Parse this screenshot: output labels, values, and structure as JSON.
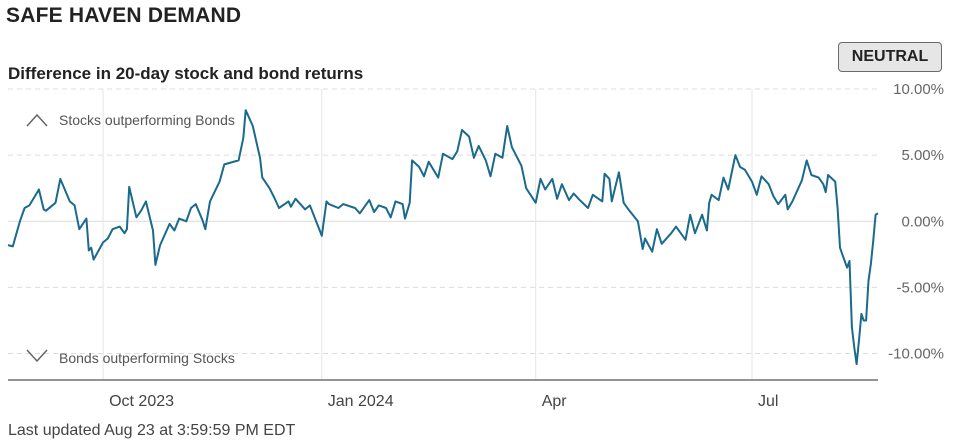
{
  "header": {
    "title": "SAFE HAVEN DEMAND",
    "subtitle": "Difference in 20-day stock and bond returns",
    "rating": "NEUTRAL"
  },
  "footer": {
    "updated": "Last updated Aug 23 at 3:59:59 PM EDT"
  },
  "colors": {
    "line": "#1a6a8c",
    "grid": "#dcdcdc",
    "axis": "#555555",
    "badge_bg": "#e6e6e6"
  },
  "icons": {
    "up": "chevron-up-icon",
    "down": "chevron-down-icon"
  },
  "chart_data": {
    "type": "line",
    "title": "Difference in 20-day stock and bond returns",
    "ylim": [
      -12,
      10
    ],
    "y_ticks": [
      10,
      5,
      0,
      -5,
      -10
    ],
    "y_tick_labels": [
      "10.00%",
      "5.00%",
      "0.00%",
      "-5.00%",
      "-10.00%"
    ],
    "x_range": [
      "2023-08-23",
      "2024-08-23"
    ],
    "x_ticks": [
      {
        "date": "2023-10-02",
        "label": "Oct 2023"
      },
      {
        "date": "2024-01-02",
        "label": "Jan 2024"
      },
      {
        "date": "2024-04-01",
        "label": "Apr"
      },
      {
        "date": "2024-07-01",
        "label": "Jul"
      }
    ],
    "annotations": {
      "top": "Stocks outperforming Bonds",
      "bottom": "Bonds outperforming Stocks"
    },
    "grid": true,
    "series": [
      {
        "points": [
          [
            "2023-08-23",
            -1.8
          ],
          [
            "2023-08-25",
            -1.9
          ],
          [
            "2023-08-28",
            0.0
          ],
          [
            "2023-08-30",
            1.0
          ],
          [
            "2023-09-01",
            1.2
          ],
          [
            "2023-09-05",
            2.4
          ],
          [
            "2023-09-07",
            0.9
          ],
          [
            "2023-09-08",
            0.8
          ],
          [
            "2023-09-12",
            1.4
          ],
          [
            "2023-09-14",
            3.2
          ],
          [
            "2023-09-18",
            1.5
          ],
          [
            "2023-09-20",
            1.2
          ],
          [
            "2023-09-22",
            -0.6
          ],
          [
            "2023-09-25",
            0.2
          ],
          [
            "2023-09-26",
            -2.2
          ],
          [
            "2023-09-27",
            -2.0
          ],
          [
            "2023-09-28",
            -2.9
          ],
          [
            "2023-10-02",
            -1.6
          ],
          [
            "2023-10-04",
            -1.3
          ],
          [
            "2023-10-06",
            -0.6
          ],
          [
            "2023-10-09",
            -0.4
          ],
          [
            "2023-10-11",
            -0.9
          ],
          [
            "2023-10-12",
            -0.6
          ],
          [
            "2023-10-13",
            2.6
          ],
          [
            "2023-10-16",
            0.3
          ],
          [
            "2023-10-18",
            0.8
          ],
          [
            "2023-10-20",
            1.5
          ],
          [
            "2023-10-23",
            -0.7
          ],
          [
            "2023-10-24",
            -3.3
          ],
          [
            "2023-10-26",
            -1.8
          ],
          [
            "2023-10-30",
            -0.2
          ],
          [
            "2023-11-01",
            -0.7
          ],
          [
            "2023-11-03",
            0.2
          ],
          [
            "2023-11-06",
            0.0
          ],
          [
            "2023-11-08",
            1.0
          ],
          [
            "2023-11-10",
            1.3
          ],
          [
            "2023-11-13",
            0.0
          ],
          [
            "2023-11-14",
            -0.6
          ],
          [
            "2023-11-16",
            1.5
          ],
          [
            "2023-11-20",
            3.0
          ],
          [
            "2023-11-22",
            4.3
          ],
          [
            "2023-11-28",
            4.6
          ],
          [
            "2023-11-30",
            6.3
          ],
          [
            "2023-12-01",
            8.4
          ],
          [
            "2023-12-04",
            7.2
          ],
          [
            "2023-12-07",
            4.8
          ],
          [
            "2023-12-08",
            3.3
          ],
          [
            "2023-12-11",
            2.5
          ],
          [
            "2023-12-13",
            1.8
          ],
          [
            "2023-12-15",
            1.0
          ],
          [
            "2023-12-19",
            1.5
          ],
          [
            "2023-12-20",
            1.1
          ],
          [
            "2023-12-22",
            1.7
          ],
          [
            "2023-12-26",
            0.9
          ],
          [
            "2023-12-28",
            1.2
          ],
          [
            "2024-01-02",
            -1.1
          ],
          [
            "2024-01-04",
            1.5
          ],
          [
            "2024-01-05",
            1.3
          ],
          [
            "2024-01-09",
            1.0
          ],
          [
            "2024-01-11",
            1.3
          ],
          [
            "2024-01-16",
            1.0
          ],
          [
            "2024-01-18",
            0.6
          ],
          [
            "2024-01-22",
            1.6
          ],
          [
            "2024-01-24",
            0.7
          ],
          [
            "2024-01-26",
            1.2
          ],
          [
            "2024-01-29",
            1.0
          ],
          [
            "2024-01-31",
            0.3
          ],
          [
            "2024-02-02",
            1.5
          ],
          [
            "2024-02-05",
            1.3
          ],
          [
            "2024-02-06",
            0.2
          ],
          [
            "2024-02-08",
            1.4
          ],
          [
            "2024-02-09",
            4.6
          ],
          [
            "2024-02-12",
            4.1
          ],
          [
            "2024-02-14",
            3.4
          ],
          [
            "2024-02-16",
            4.5
          ],
          [
            "2024-02-20",
            3.3
          ],
          [
            "2024-02-22",
            5.1
          ],
          [
            "2024-02-26",
            4.7
          ],
          [
            "2024-02-28",
            5.3
          ],
          [
            "2024-03-01",
            6.9
          ],
          [
            "2024-03-04",
            6.4
          ],
          [
            "2024-03-06",
            4.8
          ],
          [
            "2024-03-08",
            5.7
          ],
          [
            "2024-03-11",
            4.6
          ],
          [
            "2024-03-13",
            3.4
          ],
          [
            "2024-03-15",
            5.1
          ],
          [
            "2024-03-18",
            4.8
          ],
          [
            "2024-03-20",
            7.2
          ],
          [
            "2024-03-22",
            5.6
          ],
          [
            "2024-03-26",
            4.2
          ],
          [
            "2024-03-28",
            2.5
          ],
          [
            "2024-04-01",
            1.4
          ],
          [
            "2024-04-03",
            3.2
          ],
          [
            "2024-04-05",
            2.4
          ],
          [
            "2024-04-08",
            3.2
          ],
          [
            "2024-04-10",
            1.7
          ],
          [
            "2024-04-12",
            2.8
          ],
          [
            "2024-04-15",
            1.6
          ],
          [
            "2024-04-17",
            2.1
          ],
          [
            "2024-04-19",
            1.7
          ],
          [
            "2024-04-23",
            1.0
          ],
          [
            "2024-04-25",
            2.0
          ],
          [
            "2024-04-29",
            1.5
          ],
          [
            "2024-04-30",
            3.6
          ],
          [
            "2024-05-02",
            3.2
          ],
          [
            "2024-05-03",
            1.5
          ],
          [
            "2024-05-06",
            3.7
          ],
          [
            "2024-05-08",
            1.4
          ],
          [
            "2024-05-10",
            0.9
          ],
          [
            "2024-05-14",
            0.0
          ],
          [
            "2024-05-16",
            -2.1
          ],
          [
            "2024-05-17",
            -1.3
          ],
          [
            "2024-05-20",
            -2.3
          ],
          [
            "2024-05-22",
            -0.6
          ],
          [
            "2024-05-24",
            -1.7
          ],
          [
            "2024-05-28",
            -0.9
          ],
          [
            "2024-05-30",
            -0.4
          ],
          [
            "2024-06-03",
            -1.4
          ],
          [
            "2024-06-05",
            0.5
          ],
          [
            "2024-06-07",
            -0.9
          ],
          [
            "2024-06-10",
            0.5
          ],
          [
            "2024-06-12",
            -0.7
          ],
          [
            "2024-06-13",
            1.4
          ],
          [
            "2024-06-14",
            2.0
          ],
          [
            "2024-06-17",
            1.6
          ],
          [
            "2024-06-19",
            3.3
          ],
          [
            "2024-06-21",
            2.4
          ],
          [
            "2024-06-24",
            5.0
          ],
          [
            "2024-06-26",
            4.1
          ],
          [
            "2024-06-28",
            3.9
          ],
          [
            "2024-07-01",
            3.0
          ],
          [
            "2024-07-03",
            2.0
          ],
          [
            "2024-07-05",
            3.4
          ],
          [
            "2024-07-08",
            2.8
          ],
          [
            "2024-07-10",
            1.9
          ],
          [
            "2024-07-12",
            1.3
          ],
          [
            "2024-07-15",
            2.0
          ],
          [
            "2024-07-16",
            0.9
          ],
          [
            "2024-07-18",
            1.5
          ],
          [
            "2024-07-22",
            3.1
          ],
          [
            "2024-07-24",
            4.6
          ],
          [
            "2024-07-26",
            3.5
          ],
          [
            "2024-07-29",
            3.3
          ],
          [
            "2024-07-31",
            2.8
          ],
          [
            "2024-08-01",
            2.2
          ],
          [
            "2024-08-02",
            3.5
          ],
          [
            "2024-08-05",
            3.0
          ],
          [
            "2024-08-06",
            1.0
          ],
          [
            "2024-08-07",
            -2.0
          ],
          [
            "2024-08-08",
            -2.5
          ],
          [
            "2024-08-09",
            -3.0
          ],
          [
            "2024-08-10",
            -3.5
          ],
          [
            "2024-08-11",
            -3.0
          ],
          [
            "2024-08-12",
            -8.0
          ],
          [
            "2024-08-13",
            -9.5
          ],
          [
            "2024-08-14",
            -10.8
          ],
          [
            "2024-08-15",
            -9.0
          ],
          [
            "2024-08-16",
            -7.0
          ],
          [
            "2024-08-17",
            -7.5
          ],
          [
            "2024-08-18",
            -7.5
          ],
          [
            "2024-08-19",
            -4.5
          ],
          [
            "2024-08-20",
            -3.2
          ],
          [
            "2024-08-21",
            -1.5
          ],
          [
            "2024-08-22",
            0.5
          ],
          [
            "2024-08-23",
            0.6
          ]
        ]
      }
    ]
  }
}
